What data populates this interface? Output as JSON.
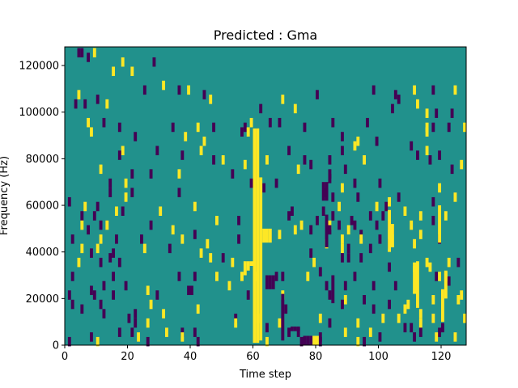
{
  "chart_data": {
    "type": "heatmap",
    "title": "Predicted : Gma",
    "xlabel": "Time step",
    "ylabel": "Frequency (Hz)",
    "xlim": [
      0,
      128
    ],
    "ylim": [
      0,
      128000
    ],
    "xticks": [
      0,
      20,
      40,
      60,
      80,
      100,
      120
    ],
    "yticks": [
      0,
      20000,
      40000,
      60000,
      80000,
      100000,
      120000
    ],
    "background_value": 0,
    "colors": {
      "background": "#21918c",
      "high": "#fde725",
      "low": "#440154"
    },
    "cells": [
      [
        4,
        125500,
        -1
      ],
      [
        5,
        125500,
        -1
      ],
      [
        9,
        125500,
        1
      ],
      [
        7,
        123500,
        -1
      ],
      [
        18,
        121500,
        1
      ],
      [
        28,
        121500,
        -1
      ],
      [
        15,
        117500,
        1
      ],
      [
        21,
        117500,
        1
      ],
      [
        31,
        111500,
        1
      ],
      [
        25,
        109500,
        -1
      ],
      [
        36,
        109500,
        -1
      ],
      [
        39,
        109500,
        1
      ],
      [
        98,
        109500,
        -1
      ],
      [
        111,
        109500,
        1
      ],
      [
        117,
        109500,
        -1
      ],
      [
        124,
        109500,
        1
      ],
      [
        4,
        107500,
        1
      ],
      [
        10,
        105500,
        -1
      ],
      [
        44,
        107500,
        -1
      ],
      [
        46,
        105500,
        1
      ],
      [
        69,
        105500,
        1
      ],
      [
        80,
        107500,
        -1
      ],
      [
        105,
        107500,
        -1
      ],
      [
        106,
        105500,
        -1
      ],
      [
        3,
        103500,
        -1
      ],
      [
        6,
        103500,
        -1
      ],
      [
        13,
        103500,
        1
      ],
      [
        62,
        101500,
        -1
      ],
      [
        73,
        101500,
        1
      ],
      [
        104,
        101500,
        -1
      ],
      [
        112,
        103500,
        1
      ],
      [
        115,
        99500,
        1
      ],
      [
        118,
        99500,
        -1
      ],
      [
        123,
        99500,
        -1
      ],
      [
        7,
        95500,
        1
      ],
      [
        12,
        95500,
        -1
      ],
      [
        59,
        95500,
        1
      ],
      [
        17,
        93500,
        -1
      ],
      [
        34,
        93500,
        -1
      ],
      [
        42,
        93500,
        1
      ],
      [
        47,
        93500,
        -1
      ],
      [
        57,
        93500,
        -1
      ],
      [
        65,
        95500,
        -1
      ],
      [
        68,
        95500,
        -1
      ],
      [
        85,
        95500,
        -1
      ],
      [
        96,
        95500,
        -1
      ],
      [
        115,
        93500,
        1
      ],
      [
        117,
        93500,
        -1
      ],
      [
        122,
        93500,
        -1
      ],
      [
        127,
        93500,
        1
      ],
      [
        8,
        91500,
        1
      ],
      [
        22,
        89500,
        -1
      ],
      [
        56,
        91500,
        -1
      ],
      [
        58,
        91500,
        1
      ],
      [
        76,
        93500,
        -1
      ],
      [
        115,
        91500,
        1
      ],
      [
        44,
        87500,
        1
      ],
      [
        38,
        89500,
        1
      ],
      [
        88,
        89500,
        -1
      ],
      [
        93,
        87500,
        1
      ],
      [
        18,
        83500,
        1
      ],
      [
        29,
        83500,
        -1
      ],
      [
        43,
        83500,
        1
      ],
      [
        71,
        83500,
        -1
      ],
      [
        88,
        83500,
        -1
      ],
      [
        92,
        85500,
        1
      ],
      [
        99,
        87500,
        -1
      ],
      [
        110,
        85500,
        -1
      ],
      [
        115,
        83500,
        1
      ],
      [
        17,
        81500,
        -1
      ],
      [
        37,
        81500,
        -1
      ],
      [
        50,
        79500,
        1
      ],
      [
        47,
        79500,
        -1
      ],
      [
        57,
        77500,
        1
      ],
      [
        64,
        79500,
        1
      ],
      [
        76,
        79500,
        -1
      ],
      [
        78,
        77500,
        -1
      ],
      [
        84,
        79500,
        -1
      ],
      [
        95,
        79500,
        1
      ],
      [
        112,
        81500,
        -1
      ],
      [
        116,
        79500,
        -1
      ],
      [
        119,
        81500,
        -1
      ],
      [
        11,
        75500,
        1
      ],
      [
        21,
        73500,
        -1
      ],
      [
        27,
        73500,
        -1
      ],
      [
        36,
        73500,
        1
      ],
      [
        53,
        73500,
        -1
      ],
      [
        74,
        75500,
        1
      ],
      [
        84,
        73500,
        -1
      ],
      [
        89,
        75500,
        -1
      ],
      [
        123,
        75500,
        -1
      ],
      [
        126,
        77500,
        1
      ],
      [
        14,
        69500,
        -1
      ],
      [
        19,
        69500,
        1
      ],
      [
        59,
        69500,
        -1
      ],
      [
        63,
        67500,
        -1
      ],
      [
        67,
        69500,
        -1
      ],
      [
        84,
        71500,
        -1
      ],
      [
        88,
        67500,
        1
      ],
      [
        92,
        69500,
        -1
      ],
      [
        100,
        69500,
        -1
      ],
      [
        119,
        67500,
        1
      ],
      [
        1,
        61500,
        -1
      ],
      [
        14,
        65500,
        -1
      ],
      [
        21,
        65500,
        -1
      ],
      [
        36,
        65500,
        -1
      ],
      [
        83,
        65500,
        -1
      ],
      [
        85,
        63500,
        -1
      ],
      [
        93,
        63500,
        -1
      ],
      [
        106,
        63500,
        -1
      ],
      [
        117,
        61500,
        -1
      ],
      [
        124,
        63500,
        1
      ],
      [
        6,
        59500,
        1
      ],
      [
        10,
        59500,
        -1
      ],
      [
        19,
        63500,
        1
      ],
      [
        30,
        57500,
        1
      ],
      [
        41,
        59500,
        1
      ],
      [
        72,
        57500,
        -1
      ],
      [
        82,
        57500,
        -1
      ],
      [
        87,
        59500,
        1
      ],
      [
        99,
        59500,
        1
      ],
      [
        102,
        59500,
        -1
      ],
      [
        103,
        61500,
        1
      ],
      [
        108,
        57500,
        1
      ],
      [
        113,
        55500,
        1
      ],
      [
        5,
        55500,
        -1
      ],
      [
        9,
        55500,
        -1
      ],
      [
        11,
        51500,
        -1
      ],
      [
        16,
        57500,
        1
      ],
      [
        18,
        57500,
        -1
      ],
      [
        48,
        53500,
        1
      ],
      [
        55,
        53500,
        -1
      ],
      [
        71,
        55500,
        -1
      ],
      [
        80,
        53500,
        -1
      ],
      [
        85,
        55500,
        -1
      ],
      [
        91,
        53500,
        -1
      ],
      [
        97,
        55500,
        -1
      ],
      [
        101,
        55500,
        -1
      ],
      [
        117,
        53500,
        -1
      ],
      [
        121,
        55500,
        1
      ],
      [
        5,
        51500,
        1
      ],
      [
        13,
        51500,
        1
      ],
      [
        27,
        51500,
        -1
      ],
      [
        75,
        51500,
        1
      ],
      [
        84,
        51500,
        1
      ],
      [
        87,
        51500,
        -1
      ],
      [
        92,
        51500,
        -1
      ],
      [
        99,
        51500,
        -1
      ],
      [
        103,
        51500,
        -1
      ],
      [
        110,
        51500,
        1
      ],
      [
        7,
        49500,
        -1
      ],
      [
        34,
        49500,
        1
      ],
      [
        41,
        47500,
        -1
      ],
      [
        73,
        49500,
        1
      ],
      [
        78,
        49500,
        -1
      ],
      [
        84,
        49500,
        -1
      ],
      [
        90,
        49500,
        1
      ],
      [
        94,
        47500,
        -1
      ],
      [
        104,
        49500,
        -1
      ],
      [
        2,
        45500,
        -1
      ],
      [
        11,
        45500,
        1
      ],
      [
        16,
        45500,
        -1
      ],
      [
        24,
        45500,
        -1
      ],
      [
        37,
        45500,
        1
      ],
      [
        55,
        45500,
        -1
      ],
      [
        68,
        47500,
        1
      ],
      [
        88,
        45500,
        1
      ],
      [
        94,
        45500,
        1
      ],
      [
        100,
        45500,
        -1
      ],
      [
        113,
        47500,
        1
      ],
      [
        119,
        45500,
        -1
      ],
      [
        5,
        41500,
        1
      ],
      [
        10,
        41500,
        1
      ],
      [
        25,
        41500,
        1
      ],
      [
        33,
        41500,
        -1
      ],
      [
        45,
        43500,
        1
      ],
      [
        83,
        43500,
        1
      ],
      [
        88,
        41500,
        1
      ],
      [
        90,
        41500,
        -1
      ],
      [
        97,
        41500,
        -1
      ],
      [
        103,
        43500,
        -1
      ],
      [
        111,
        43500,
        1
      ],
      [
        8,
        39500,
        -1
      ],
      [
        14,
        37500,
        -1
      ],
      [
        15,
        39500,
        -1
      ],
      [
        43,
        39500,
        1
      ],
      [
        46,
        37500,
        1
      ],
      [
        50,
        37500,
        -1
      ],
      [
        78,
        39500,
        -1
      ],
      [
        88,
        37500,
        -1
      ],
      [
        90,
        37500,
        -1
      ],
      [
        94,
        37500,
        -1
      ],
      [
        4,
        35500,
        1
      ],
      [
        11,
        35500,
        -1
      ],
      [
        17,
        35500,
        -1
      ],
      [
        53,
        35500,
        1
      ],
      [
        79,
        35500,
        1
      ],
      [
        115,
        35500,
        1
      ],
      [
        122,
        35500,
        1
      ],
      [
        125,
        35500,
        -1
      ],
      [
        103,
        33500,
        -1
      ],
      [
        111,
        33500,
        1
      ],
      [
        116,
        33500,
        1
      ],
      [
        81,
        31500,
        -1
      ],
      [
        2,
        29500,
        -1
      ],
      [
        15,
        29500,
        -1
      ],
      [
        36,
        29500,
        -1
      ],
      [
        41,
        29500,
        -1
      ],
      [
        48,
        29500,
        1
      ],
      [
        56,
        29500,
        1
      ],
      [
        60,
        29500,
        1
      ],
      [
        67,
        29500,
        -1
      ],
      [
        69,
        29500,
        -1
      ],
      [
        77,
        29500,
        1
      ],
      [
        92,
        29500,
        -1
      ],
      [
        118,
        29500,
        -1
      ],
      [
        119,
        29500,
        1
      ],
      [
        121,
        29500,
        1
      ],
      [
        122,
        27500,
        -1
      ],
      [
        12,
        25500,
        -1
      ],
      [
        19,
        25500,
        -1
      ],
      [
        8,
        23500,
        -1
      ],
      [
        15,
        21500,
        -1
      ],
      [
        26,
        23500,
        1
      ],
      [
        39,
        23500,
        -1
      ],
      [
        40,
        23500,
        -1
      ],
      [
        52,
        25500,
        1
      ],
      [
        83,
        25500,
        -1
      ],
      [
        89,
        25500,
        -1
      ],
      [
        98,
        25500,
        -1
      ],
      [
        105,
        25500,
        -1
      ],
      [
        1,
        21500,
        -1
      ],
      [
        9,
        21500,
        -1
      ],
      [
        29,
        21500,
        -1
      ],
      [
        58,
        21500,
        -1
      ],
      [
        69,
        21500,
        1
      ],
      [
        84,
        21500,
        -1
      ],
      [
        89,
        19500,
        1
      ],
      [
        95,
        19500,
        -1
      ],
      [
        126,
        21500,
        1
      ],
      [
        2,
        17500,
        -1
      ],
      [
        11,
        17500,
        -1
      ],
      [
        27,
        17500,
        1
      ],
      [
        88,
        17500,
        -1
      ],
      [
        103,
        17500,
        -1
      ],
      [
        109,
        17500,
        1
      ],
      [
        117,
        19500,
        1
      ],
      [
        125,
        19500,
        1
      ],
      [
        5,
        15500,
        -1
      ],
      [
        12,
        13500,
        -1
      ],
      [
        22,
        13500,
        -1
      ],
      [
        31,
        13500,
        1
      ],
      [
        42,
        15500,
        1
      ],
      [
        70,
        15500,
        -1
      ],
      [
        98,
        15500,
        -1
      ],
      [
        108,
        15500,
        1
      ],
      [
        113,
        13500,
        1
      ],
      [
        20,
        11500,
        -1
      ],
      [
        54,
        11500,
        -1
      ],
      [
        61,
        11500,
        1
      ],
      [
        81,
        11500,
        1
      ],
      [
        101,
        11500,
        1
      ],
      [
        106,
        11500,
        1
      ],
      [
        117,
        11500,
        1
      ],
      [
        127,
        11500,
        1
      ],
      [
        22,
        9500,
        -1
      ],
      [
        26,
        9500,
        1
      ],
      [
        54,
        9500,
        1
      ],
      [
        68,
        9500,
        1
      ],
      [
        84,
        9500,
        -1
      ],
      [
        93,
        9500,
        1
      ],
      [
        113,
        9500,
        1
      ],
      [
        108,
        7500,
        -1
      ],
      [
        110,
        7500,
        -1
      ],
      [
        120,
        7500,
        -1
      ],
      [
        17,
        5500,
        -1
      ],
      [
        21,
        5500,
        -1
      ],
      [
        32,
        5500,
        1
      ],
      [
        37,
        5500,
        -1
      ],
      [
        41,
        5500,
        -1
      ],
      [
        64,
        7500,
        -1
      ],
      [
        71,
        5500,
        -1
      ],
      [
        74,
        5500,
        -1
      ],
      [
        89,
        5500,
        1
      ],
      [
        97,
        5500,
        1
      ],
      [
        113,
        5500,
        -1
      ],
      [
        119,
        5500,
        -1
      ],
      [
        8,
        3500,
        -1
      ],
      [
        23,
        3500,
        1
      ],
      [
        37,
        3500,
        1
      ],
      [
        81,
        3500,
        -1
      ],
      [
        100,
        3500,
        -1
      ],
      [
        111,
        3500,
        -1
      ],
      [
        118,
        3500,
        1
      ],
      [
        124,
        3500,
        1
      ],
      [
        1,
        1500,
        -1
      ],
      [
        10,
        1500,
        1
      ],
      [
        26,
        1500,
        -1
      ],
      [
        42,
        1500,
        -1
      ],
      [
        64,
        1500,
        1
      ],
      [
        75,
        1500,
        -1
      ],
      [
        81,
        1500,
        -1
      ],
      [
        93,
        1500,
        1
      ],
      [
        95,
        1500,
        -1
      ]
    ],
    "runs": [
      [
        60,
        1000,
        93000,
        1
      ],
      [
        61,
        1000,
        93000,
        1
      ],
      [
        62,
        2000,
        72000,
        1
      ],
      [
        63,
        44000,
        50000,
        1
      ],
      [
        64,
        44000,
        50000,
        1
      ],
      [
        65,
        44000,
        50000,
        1
      ],
      [
        57,
        30000,
        36000,
        1
      ],
      [
        58,
        32000,
        36000,
        1
      ],
      [
        59,
        34000,
        36000,
        1
      ],
      [
        66,
        24000,
        30000,
        -1
      ],
      [
        65,
        24000,
        30000,
        -1
      ],
      [
        64,
        24000,
        30000,
        -1
      ],
      [
        72,
        6000,
        8000,
        -1
      ],
      [
        73,
        6000,
        8000,
        -1
      ],
      [
        74,
        6000,
        8000,
        -1
      ],
      [
        76,
        0,
        4000,
        -1
      ],
      [
        77,
        0,
        4000,
        -1
      ],
      [
        78,
        0,
        4000,
        -1
      ],
      [
        79,
        0,
        4000,
        1
      ],
      [
        80,
        0,
        4000,
        1
      ],
      [
        82,
        62000,
        70000,
        -1
      ],
      [
        83,
        62000,
        70000,
        -1
      ],
      [
        83,
        42000,
        56000,
        -1
      ],
      [
        103,
        40000,
        58000,
        1
      ],
      [
        104,
        42000,
        52000,
        1
      ],
      [
        111,
        22000,
        34000,
        1
      ],
      [
        112,
        16000,
        36000,
        1
      ],
      [
        120,
        10000,
        24000,
        1
      ],
      [
        121,
        20000,
        32000,
        1
      ],
      [
        119,
        44000,
        60000,
        1
      ],
      [
        69,
        2000,
        22000,
        -1
      ],
      [
        85,
        18000,
        30000,
        -1
      ]
    ]
  }
}
